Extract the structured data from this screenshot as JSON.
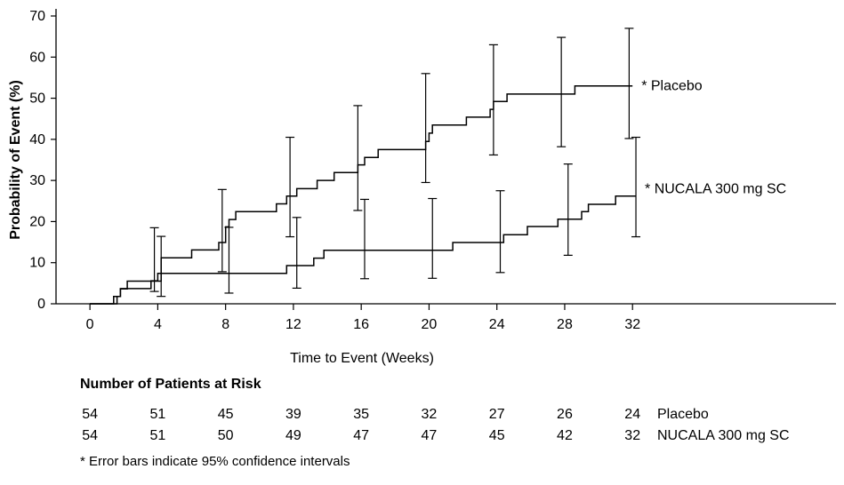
{
  "chart_data": {
    "type": "line",
    "subtype": "kaplan-meier step curves with error bars",
    "title": "",
    "xlabel": "Time to Event (Weeks)",
    "ylabel": "Probability of Event (%)",
    "xlim": [
      -2,
      44
    ],
    "ylim": [
      0,
      70
    ],
    "x_ticks": [
      0,
      4,
      8,
      12,
      16,
      20,
      24,
      28,
      32
    ],
    "y_ticks": [
      0,
      10,
      20,
      30,
      40,
      50,
      60,
      70
    ],
    "series": [
      {
        "name": "Placebo",
        "label": "* Placebo",
        "steps": [
          [
            0,
            0
          ],
          [
            1.6,
            0
          ],
          [
            1.6,
            1.8
          ],
          [
            1.8,
            1.8
          ],
          [
            1.8,
            3.6
          ],
          [
            2.2,
            3.6
          ],
          [
            2.2,
            5.5
          ],
          [
            4.2,
            5.5
          ],
          [
            4.2,
            11.2
          ],
          [
            6.0,
            11.2
          ],
          [
            6.0,
            13.1
          ],
          [
            7.6,
            13.1
          ],
          [
            7.6,
            14.9
          ],
          [
            8.0,
            14.9
          ],
          [
            8.0,
            18.7
          ],
          [
            8.2,
            18.7
          ],
          [
            8.2,
            20.5
          ],
          [
            8.6,
            20.5
          ],
          [
            8.6,
            22.4
          ],
          [
            11.0,
            22.4
          ],
          [
            11.0,
            24.3
          ],
          [
            11.6,
            24.3
          ],
          [
            11.6,
            26.2
          ],
          [
            12.2,
            26.2
          ],
          [
            12.2,
            28.0
          ],
          [
            13.4,
            28.0
          ],
          [
            13.4,
            30.0
          ],
          [
            14.4,
            30.0
          ],
          [
            14.4,
            31.9
          ],
          [
            15.8,
            31.9
          ],
          [
            15.8,
            33.8
          ],
          [
            16.2,
            33.8
          ],
          [
            16.2,
            35.6
          ],
          [
            17.0,
            35.6
          ],
          [
            17.0,
            37.5
          ],
          [
            19.8,
            37.5
          ],
          [
            19.8,
            39.5
          ],
          [
            20.0,
            39.5
          ],
          [
            20.0,
            41.5
          ],
          [
            20.2,
            41.5
          ],
          [
            20.2,
            43.5
          ],
          [
            22.2,
            43.5
          ],
          [
            22.2,
            45.4
          ],
          [
            23.6,
            45.4
          ],
          [
            23.6,
            47.3
          ],
          [
            23.8,
            47.3
          ],
          [
            23.8,
            49.2
          ],
          [
            24.6,
            49.2
          ],
          [
            24.6,
            51.0
          ],
          [
            28.6,
            51.0
          ],
          [
            28.6,
            53.0
          ],
          [
            32.0,
            53.0
          ]
        ],
        "error_bars": [
          {
            "x": 3.8,
            "y": 5.5,
            "low": 3.0,
            "high": 18.5
          },
          {
            "x": 7.8,
            "y": 14.9,
            "low": 7.8,
            "high": 27.8
          },
          {
            "x": 11.8,
            "y": 26.2,
            "low": 16.3,
            "high": 40.5
          },
          {
            "x": 15.8,
            "y": 33.8,
            "low": 22.7,
            "high": 48.2
          },
          {
            "x": 19.8,
            "y": 39.5,
            "low": 29.5,
            "high": 56.0
          },
          {
            "x": 23.8,
            "y": 49.2,
            "low": 36.2,
            "high": 63.0
          },
          {
            "x": 27.8,
            "y": 51.0,
            "low": 38.2,
            "high": 64.8
          },
          {
            "x": 31.8,
            "y": 53.0,
            "low": 40.2,
            "high": 67.0
          }
        ]
      },
      {
        "name": "NUCALA 300 mg SC",
        "label": "* NUCALA 300 mg SC",
        "steps": [
          [
            0,
            0
          ],
          [
            1.4,
            0
          ],
          [
            1.4,
            1.8
          ],
          [
            1.8,
            1.8
          ],
          [
            1.8,
            3.7
          ],
          [
            3.6,
            3.7
          ],
          [
            3.6,
            5.6
          ],
          [
            4.0,
            5.6
          ],
          [
            4.0,
            7.4
          ],
          [
            11.6,
            7.4
          ],
          [
            11.6,
            9.3
          ],
          [
            13.2,
            9.3
          ],
          [
            13.2,
            11.1
          ],
          [
            13.8,
            11.1
          ],
          [
            13.8,
            13.0
          ],
          [
            21.4,
            13.0
          ],
          [
            21.4,
            14.9
          ],
          [
            24.4,
            14.9
          ],
          [
            24.4,
            16.8
          ],
          [
            25.8,
            16.8
          ],
          [
            25.8,
            18.8
          ],
          [
            27.6,
            18.8
          ],
          [
            27.6,
            20.6
          ],
          [
            29.0,
            20.6
          ],
          [
            29.0,
            22.4
          ],
          [
            29.4,
            22.4
          ],
          [
            29.4,
            24.2
          ],
          [
            31.0,
            24.2
          ],
          [
            31.0,
            26.2
          ],
          [
            32.2,
            26.2
          ]
        ],
        "error_bars": [
          {
            "x": 4.2,
            "y": 7.4,
            "low": 1.8,
            "high": 16.4
          },
          {
            "x": 8.2,
            "y": 7.4,
            "low": 2.6,
            "high": 18.6
          },
          {
            "x": 12.2,
            "y": 9.3,
            "low": 3.8,
            "high": 21.0
          },
          {
            "x": 16.2,
            "y": 13.0,
            "low": 6.1,
            "high": 25.4
          },
          {
            "x": 20.2,
            "y": 13.0,
            "low": 6.2,
            "high": 25.6
          },
          {
            "x": 24.2,
            "y": 14.9,
            "low": 7.6,
            "high": 27.5
          },
          {
            "x": 28.2,
            "y": 20.6,
            "low": 11.8,
            "high": 34.0
          },
          {
            "x": 32.2,
            "y": 26.2,
            "low": 16.3,
            "high": 40.5
          }
        ]
      }
    ]
  },
  "risk_table": {
    "title": "Number of Patients at Risk",
    "weeks": [
      0,
      4,
      8,
      12,
      16,
      20,
      24,
      28,
      32
    ],
    "rows": [
      {
        "label": "Placebo",
        "values": [
          "54",
          "51",
          "45",
          "39",
          "35",
          "32",
          "27",
          "26",
          "24"
        ]
      },
      {
        "label": "NUCALA 300 mg SC",
        "values": [
          "54",
          "51",
          "50",
          "49",
          "47",
          "47",
          "45",
          "42",
          "32"
        ]
      }
    ]
  },
  "footnote": "* Error bars indicate 95% confidence intervals"
}
